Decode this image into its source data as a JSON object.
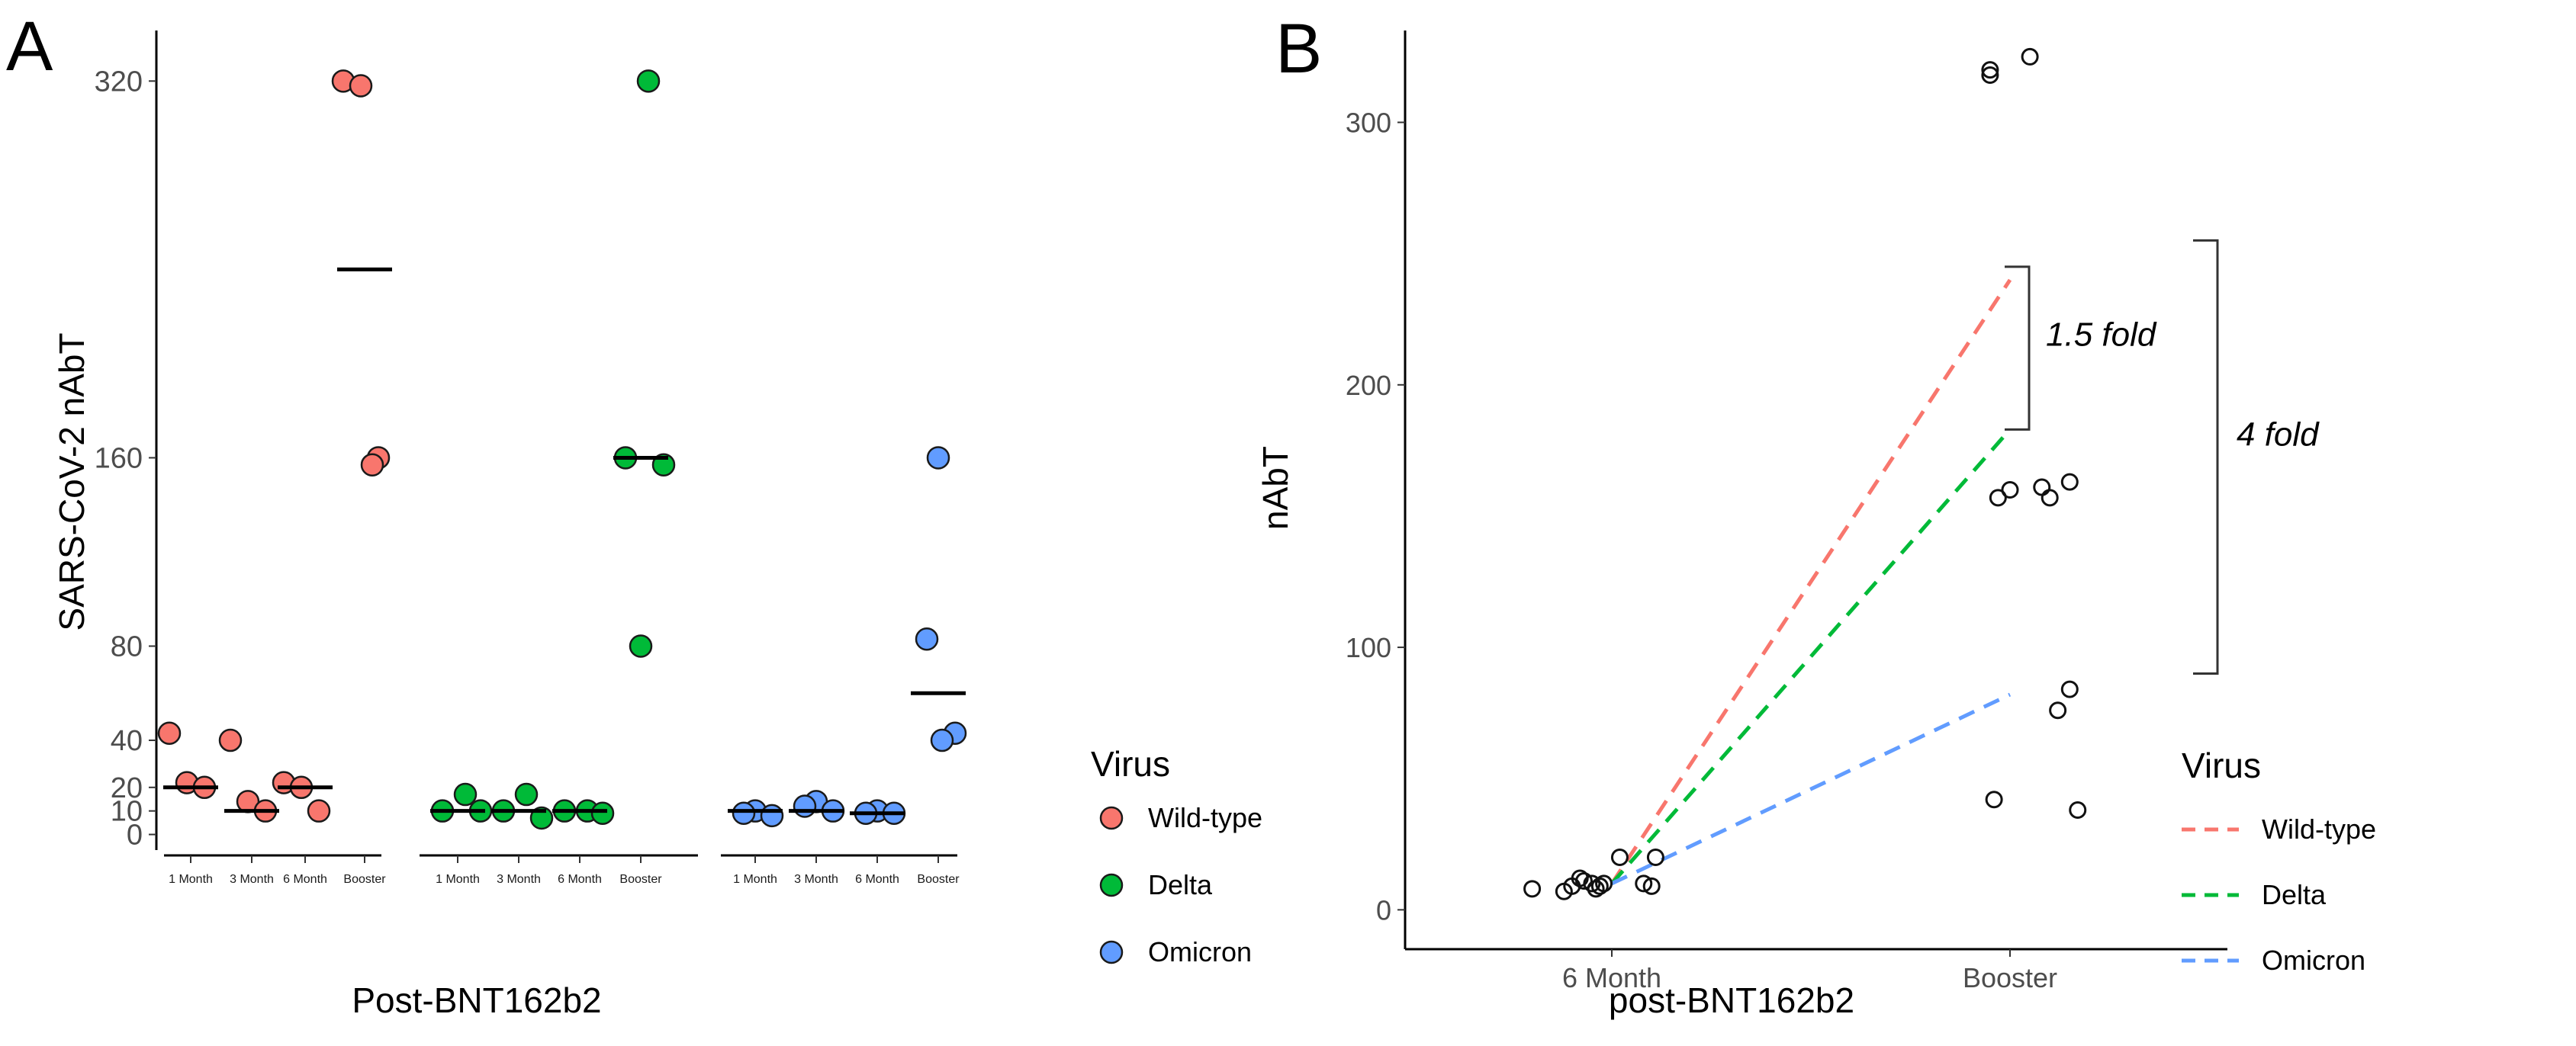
{
  "chart_data": [
    {
      "panel": "A",
      "type": "scatter",
      "ylabel": "SARS-CoV-2 nAbT",
      "xlabel": "Post-BNT162b2",
      "yticks": [
        0,
        10,
        20,
        40,
        80,
        160,
        320
      ],
      "ylim": [
        -5,
        335
      ],
      "legend_title": "Virus",
      "timepoints": [
        "1 Month",
        "3 Month",
        "6 Month",
        "Booster"
      ],
      "series": [
        {
          "name": "Wild-type",
          "color": "#F8766D",
          "points": [
            [
              0,
              43
            ],
            [
              0,
              22
            ],
            [
              0,
              20
            ],
            [
              1,
              40
            ],
            [
              1,
              14
            ],
            [
              1,
              10
            ],
            [
              2,
              22
            ],
            [
              2,
              20
            ],
            [
              2,
              10
            ],
            [
              3,
              320
            ],
            [
              3,
              318
            ],
            [
              3,
              160
            ],
            [
              3,
              157
            ]
          ],
          "medians": [
            20,
            10,
            20,
            240
          ]
        },
        {
          "name": "Delta",
          "color": "#00BA38",
          "points": [
            [
              0,
              17
            ],
            [
              0,
              10
            ],
            [
              0,
              10
            ],
            [
              1,
              17
            ],
            [
              1,
              10
            ],
            [
              1,
              7
            ],
            [
              2,
              10
            ],
            [
              2,
              10
            ],
            [
              2,
              9
            ],
            [
              3,
              320
            ],
            [
              3,
              160
            ],
            [
              3,
              157
            ],
            [
              3,
              80
            ]
          ],
          "medians": [
            10,
            10,
            10,
            160
          ]
        },
        {
          "name": "Omicron",
          "color": "#619CFF",
          "points": [
            [
              0,
              10
            ],
            [
              0,
              9
            ],
            [
              0,
              8
            ],
            [
              1,
              14
            ],
            [
              1,
              12
            ],
            [
              1,
              10
            ],
            [
              2,
              10
            ],
            [
              2,
              9
            ],
            [
              2,
              9
            ],
            [
              3,
              160
            ],
            [
              3,
              83
            ],
            [
              3,
              43
            ],
            [
              3,
              40
            ]
          ],
          "medians": [
            10,
            10,
            9,
            60
          ]
        }
      ]
    },
    {
      "panel": "B",
      "type": "line",
      "ylabel": "nAbT",
      "xlabel": "post-BNT162b2",
      "categories": [
        "6 Month",
        "Booster"
      ],
      "yticks": [
        0,
        100,
        200,
        300
      ],
      "ylim": [
        -15,
        335
      ],
      "legend_title": "Virus",
      "series": [
        {
          "name": "Wild-type",
          "color": "#F8766D",
          "values": [
            10,
            240
          ]
        },
        {
          "name": "Delta",
          "color": "#00BA38",
          "values": [
            10,
            183
          ]
        },
        {
          "name": "Omicron",
          "color": "#619CFF",
          "values": [
            10,
            82
          ]
        }
      ],
      "points": [
        [
          -0.2,
          8
        ],
        [
          -0.12,
          7
        ],
        [
          -0.1,
          9
        ],
        [
          -0.08,
          12
        ],
        [
          -0.07,
          11
        ],
        [
          -0.05,
          10
        ],
        [
          -0.04,
          8
        ],
        [
          -0.03,
          9
        ],
        [
          -0.02,
          10
        ],
        [
          0.02,
          20
        ],
        [
          0.08,
          10
        ],
        [
          0.1,
          9
        ],
        [
          0.11,
          20
        ],
        [
          0.95,
          320
        ],
        [
          0.95,
          318
        ],
        [
          0.97,
          157
        ],
        [
          1.0,
          160
        ],
        [
          1.05,
          325
        ],
        [
          1.08,
          161
        ],
        [
          1.1,
          157
        ],
        [
          0.96,
          42
        ],
        [
          1.12,
          76
        ],
        [
          1.15,
          84
        ],
        [
          1.17,
          38
        ],
        [
          1.15,
          163
        ]
      ],
      "annotations": [
        {
          "text": "1.5 fold",
          "from": 183,
          "to": 245
        },
        {
          "text": "4 fold",
          "from": 90,
          "to": 255
        }
      ]
    }
  ]
}
